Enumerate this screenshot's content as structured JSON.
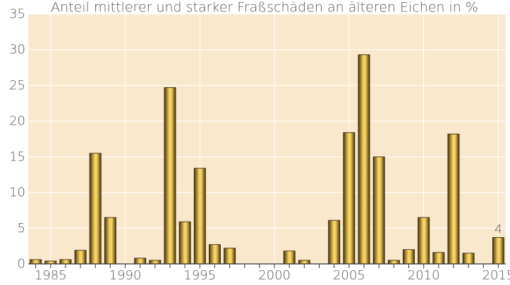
{
  "chart_data": {
    "type": "bar",
    "title": "Anteil mittlerer und starker Fraßschäden an älteren Eichen in %",
    "xlabel": "",
    "ylabel": "",
    "ylim": [
      0,
      35
    ],
    "yticks": [
      0,
      5,
      10,
      15,
      20,
      25,
      30,
      35
    ],
    "xticks": [
      1985,
      1990,
      1995,
      2000,
      2005,
      2010,
      2015
    ],
    "xlim": [
      1984,
      2015
    ],
    "grid": true,
    "legend": "none",
    "categories": [
      1984,
      1985,
      1986,
      1987,
      1988,
      1989,
      1990,
      1991,
      1992,
      1993,
      1994,
      1995,
      1996,
      1997,
      1998,
      1999,
      2000,
      2001,
      2002,
      2003,
      2004,
      2005,
      2006,
      2007,
      2008,
      2009,
      2010,
      2011,
      2012,
      2013,
      2014,
      2015
    ],
    "values": [
      0.6,
      0.4,
      0.6,
      1.9,
      15.5,
      6.5,
      0,
      0.8,
      0.5,
      24.7,
      5.9,
      13.4,
      2.7,
      2.2,
      0,
      0,
      0,
      1.8,
      0.5,
      0,
      6.1,
      18.4,
      29.3,
      15.0,
      0.5,
      2.0,
      6.5,
      1.6,
      18.2,
      1.5,
      0,
      3.7
    ],
    "annotations": [
      {
        "x": 2015,
        "text": "4"
      }
    ],
    "colors": {
      "background": "#fae8cc",
      "grid": "#ffffff",
      "axis": "#333333",
      "bar_dark": "#4a3508",
      "bar_mid": "#b08a2a",
      "bar_light": "#f7d363",
      "text": "#555555"
    }
  }
}
